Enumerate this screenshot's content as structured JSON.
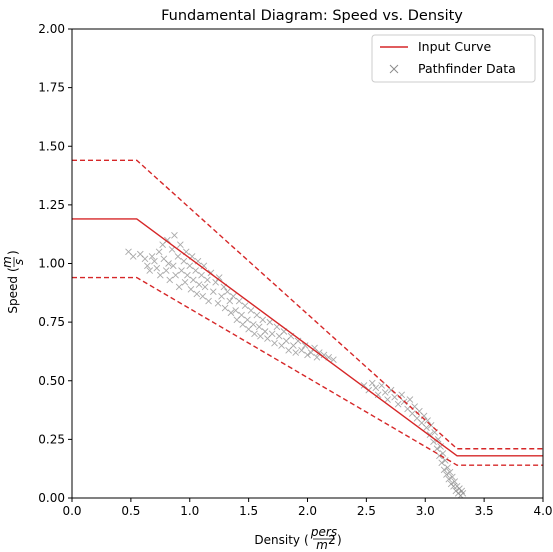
{
  "chart_data": {
    "type": "scatter",
    "title": "Fundamental Diagram: Speed vs. Density",
    "xlabel": "Density",
    "xlabel_unit_num": "pers",
    "xlabel_unit_den": "m",
    "xlabel_unit_den_exp": "2",
    "ylabel": "Speed",
    "ylabel_unit_num": "m",
    "ylabel_unit_den": "s",
    "xlim": [
      0.0,
      4.0
    ],
    "ylim": [
      0.0,
      2.0
    ],
    "xticks": [
      "0.0",
      "0.5",
      "1.0",
      "1.5",
      "2.0",
      "2.5",
      "3.0",
      "3.5",
      "4.0"
    ],
    "yticks": [
      "0.00",
      "0.25",
      "0.50",
      "0.75",
      "1.00",
      "1.25",
      "1.50",
      "1.75",
      "2.00"
    ],
    "grid": false,
    "legend_position": "top-right",
    "colors": {
      "input_curve": "#d62728",
      "pathfinder": "#8c8c8c"
    },
    "series": [
      {
        "name": "Input Curve",
        "kind": "line",
        "x": [
          0.0,
          0.55,
          3.27,
          4.0
        ],
        "y": [
          1.19,
          1.19,
          0.18,
          0.18
        ]
      },
      {
        "name": "",
        "kind": "line-dashed",
        "x": [
          0.0,
          0.55,
          3.27,
          4.0
        ],
        "y": [
          1.44,
          1.44,
          0.21,
          0.21
        ]
      },
      {
        "name": "",
        "kind": "line-dashed",
        "x": [
          0.0,
          0.55,
          3.27,
          4.0
        ],
        "y": [
          0.94,
          0.94,
          0.14,
          0.14
        ]
      },
      {
        "name": "Pathfinder Data",
        "kind": "scatter",
        "points": [
          [
            0.48,
            1.05
          ],
          [
            0.52,
            1.03
          ],
          [
            0.58,
            1.04
          ],
          [
            0.62,
            1.02
          ],
          [
            0.64,
            0.99
          ],
          [
            0.68,
            1.03
          ],
          [
            0.66,
            0.97
          ],
          [
            0.7,
            1.01
          ],
          [
            0.72,
            0.98
          ],
          [
            0.74,
            1.05
          ],
          [
            0.75,
            0.95
          ],
          [
            0.77,
            1.08
          ],
          [
            0.78,
            1.02
          ],
          [
            0.8,
            0.97
          ],
          [
            0.81,
            1.1
          ],
          [
            0.82,
            1.0
          ],
          [
            0.83,
            0.93
          ],
          [
            0.85,
            1.06
          ],
          [
            0.86,
            0.99
          ],
          [
            0.87,
            1.12
          ],
          [
            0.88,
            0.95
          ],
          [
            0.9,
            1.03
          ],
          [
            0.91,
            0.9
          ],
          [
            0.92,
            1.08
          ],
          [
            0.93,
            0.97
          ],
          [
            0.95,
            1.01
          ],
          [
            0.96,
            0.92
          ],
          [
            0.97,
            1.05
          ],
          [
            0.98,
            0.95
          ],
          [
            1.0,
            0.99
          ],
          [
            1.01,
            0.89
          ],
          [
            1.02,
            1.03
          ],
          [
            1.03,
            0.93
          ],
          [
            1.05,
            0.97
          ],
          [
            1.06,
            0.87
          ],
          [
            1.07,
            1.01
          ],
          [
            1.08,
            0.91
          ],
          [
            1.1,
            0.95
          ],
          [
            1.11,
            0.86
          ],
          [
            1.12,
            0.99
          ],
          [
            1.13,
            0.9
          ],
          [
            1.15,
            0.93
          ],
          [
            1.16,
            0.84
          ],
          [
            1.18,
            0.96
          ],
          [
            1.2,
            0.88
          ],
          [
            1.22,
            0.92
          ],
          [
            1.24,
            0.83
          ],
          [
            1.25,
            0.94
          ],
          [
            1.27,
            0.86
          ],
          [
            1.29,
            0.9
          ],
          [
            1.3,
            0.81
          ],
          [
            1.32,
            0.88
          ],
          [
            1.34,
            0.84
          ],
          [
            1.35,
            0.79
          ],
          [
            1.37,
            0.86
          ],
          [
            1.39,
            0.8
          ],
          [
            1.4,
            0.76
          ],
          [
            1.42,
            0.84
          ],
          [
            1.44,
            0.78
          ],
          [
            1.45,
            0.74
          ],
          [
            1.47,
            0.82
          ],
          [
            1.49,
            0.76
          ],
          [
            1.5,
            0.72
          ],
          [
            1.52,
            0.8
          ],
          [
            1.54,
            0.74
          ],
          [
            1.55,
            0.7
          ],
          [
            1.57,
            0.78
          ],
          [
            1.59,
            0.73
          ],
          [
            1.6,
            0.69
          ],
          [
            1.62,
            0.76
          ],
          [
            1.64,
            0.71
          ],
          [
            1.66,
            0.68
          ],
          [
            1.68,
            0.75
          ],
          [
            1.7,
            0.7
          ],
          [
            1.72,
            0.66
          ],
          [
            1.74,
            0.73
          ],
          [
            1.76,
            0.69
          ],
          [
            1.78,
            0.65
          ],
          [
            1.8,
            0.71
          ],
          [
            1.82,
            0.67
          ],
          [
            1.84,
            0.63
          ],
          [
            1.86,
            0.69
          ],
          [
            1.88,
            0.65
          ],
          [
            1.9,
            0.62
          ],
          [
            1.92,
            0.67
          ],
          [
            1.95,
            0.63
          ],
          [
            1.98,
            0.65
          ],
          [
            2.0,
            0.61
          ],
          [
            2.03,
            0.62
          ],
          [
            2.06,
            0.64
          ],
          [
            2.08,
            0.6
          ],
          [
            2.1,
            0.62
          ],
          [
            2.14,
            0.61
          ],
          [
            2.18,
            0.6
          ],
          [
            2.22,
            0.59
          ],
          [
            2.48,
            0.48
          ],
          [
            2.52,
            0.46
          ],
          [
            2.55,
            0.49
          ],
          [
            2.58,
            0.47
          ],
          [
            2.6,
            0.44
          ],
          [
            2.63,
            0.48
          ],
          [
            2.66,
            0.45
          ],
          [
            2.68,
            0.42
          ],
          [
            2.71,
            0.46
          ],
          [
            2.74,
            0.43
          ],
          [
            2.77,
            0.4
          ],
          [
            2.8,
            0.44
          ],
          [
            2.82,
            0.41
          ],
          [
            2.85,
            0.38
          ],
          [
            2.87,
            0.42
          ],
          [
            2.89,
            0.36
          ],
          [
            2.91,
            0.39
          ],
          [
            2.93,
            0.34
          ],
          [
            2.95,
            0.37
          ],
          [
            2.97,
            0.32
          ],
          [
            2.99,
            0.35
          ],
          [
            3.01,
            0.3
          ],
          [
            3.02,
            0.33
          ],
          [
            3.04,
            0.27
          ],
          [
            3.05,
            0.31
          ],
          [
            3.07,
            0.24
          ],
          [
            3.08,
            0.28
          ],
          [
            3.1,
            0.21
          ],
          [
            3.11,
            0.25
          ],
          [
            3.12,
            0.18
          ],
          [
            3.13,
            0.22
          ],
          [
            3.14,
            0.15
          ],
          [
            3.15,
            0.19
          ],
          [
            3.16,
            0.12
          ],
          [
            3.17,
            0.16
          ],
          [
            3.18,
            0.1
          ],
          [
            3.19,
            0.13
          ],
          [
            3.2,
            0.08
          ],
          [
            3.21,
            0.11
          ],
          [
            3.22,
            0.06
          ],
          [
            3.23,
            0.09
          ],
          [
            3.24,
            0.05
          ],
          [
            3.25,
            0.07
          ],
          [
            3.26,
            0.03
          ],
          [
            3.27,
            0.05
          ],
          [
            3.28,
            0.02
          ],
          [
            3.29,
            0.04
          ],
          [
            3.3,
            0.01
          ],
          [
            3.31,
            0.03
          ],
          [
            3.32,
            0.02
          ]
        ]
      }
    ]
  }
}
